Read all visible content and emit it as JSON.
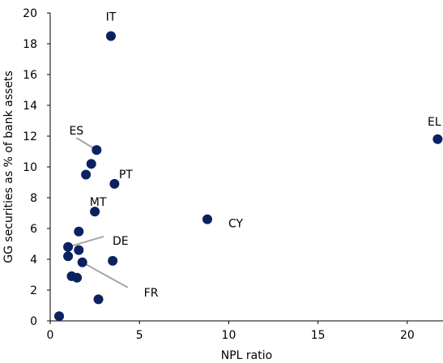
{
  "chart_data": {
    "type": "scatter",
    "title": "",
    "xlabel": "NPL ratio",
    "ylabel": "GG securities as % of bank assets",
    "xlim": [
      0,
      22
    ],
    "ylim": [
      0,
      20
    ],
    "x_ticks": [
      0,
      5,
      10,
      15,
      20
    ],
    "y_ticks": [
      0,
      2,
      4,
      6,
      8,
      10,
      12,
      14,
      16,
      18,
      20
    ],
    "grid": false,
    "legend": "none",
    "marker_color": "#0b2160",
    "leader_line_color": "#a6a6a6",
    "points": [
      {
        "x": 3.4,
        "y": 18.5,
        "label": "IT"
      },
      {
        "x": 21.7,
        "y": 11.8,
        "label": "EL"
      },
      {
        "x": 2.6,
        "y": 11.1,
        "label": "ES"
      },
      {
        "x": 2.3,
        "y": 10.2,
        "label": ""
      },
      {
        "x": 2.0,
        "y": 9.5,
        "label": ""
      },
      {
        "x": 3.6,
        "y": 8.9,
        "label": "PT"
      },
      {
        "x": 2.5,
        "y": 7.1,
        "label": "MT"
      },
      {
        "x": 8.8,
        "y": 6.6,
        "label": "CY"
      },
      {
        "x": 1.6,
        "y": 5.8,
        "label": ""
      },
      {
        "x": 1.0,
        "y": 4.8,
        "label": "DE"
      },
      {
        "x": 1.6,
        "y": 4.6,
        "label": ""
      },
      {
        "x": 1.0,
        "y": 4.2,
        "label": ""
      },
      {
        "x": 3.5,
        "y": 3.9,
        "label": ""
      },
      {
        "x": 1.8,
        "y": 3.8,
        "label": "FR"
      },
      {
        "x": 1.2,
        "y": 2.9,
        "label": ""
      },
      {
        "x": 1.5,
        "y": 2.8,
        "label": ""
      },
      {
        "x": 2.7,
        "y": 1.4,
        "label": ""
      },
      {
        "x": 0.5,
        "y": 0.3,
        "label": ""
      }
    ]
  }
}
